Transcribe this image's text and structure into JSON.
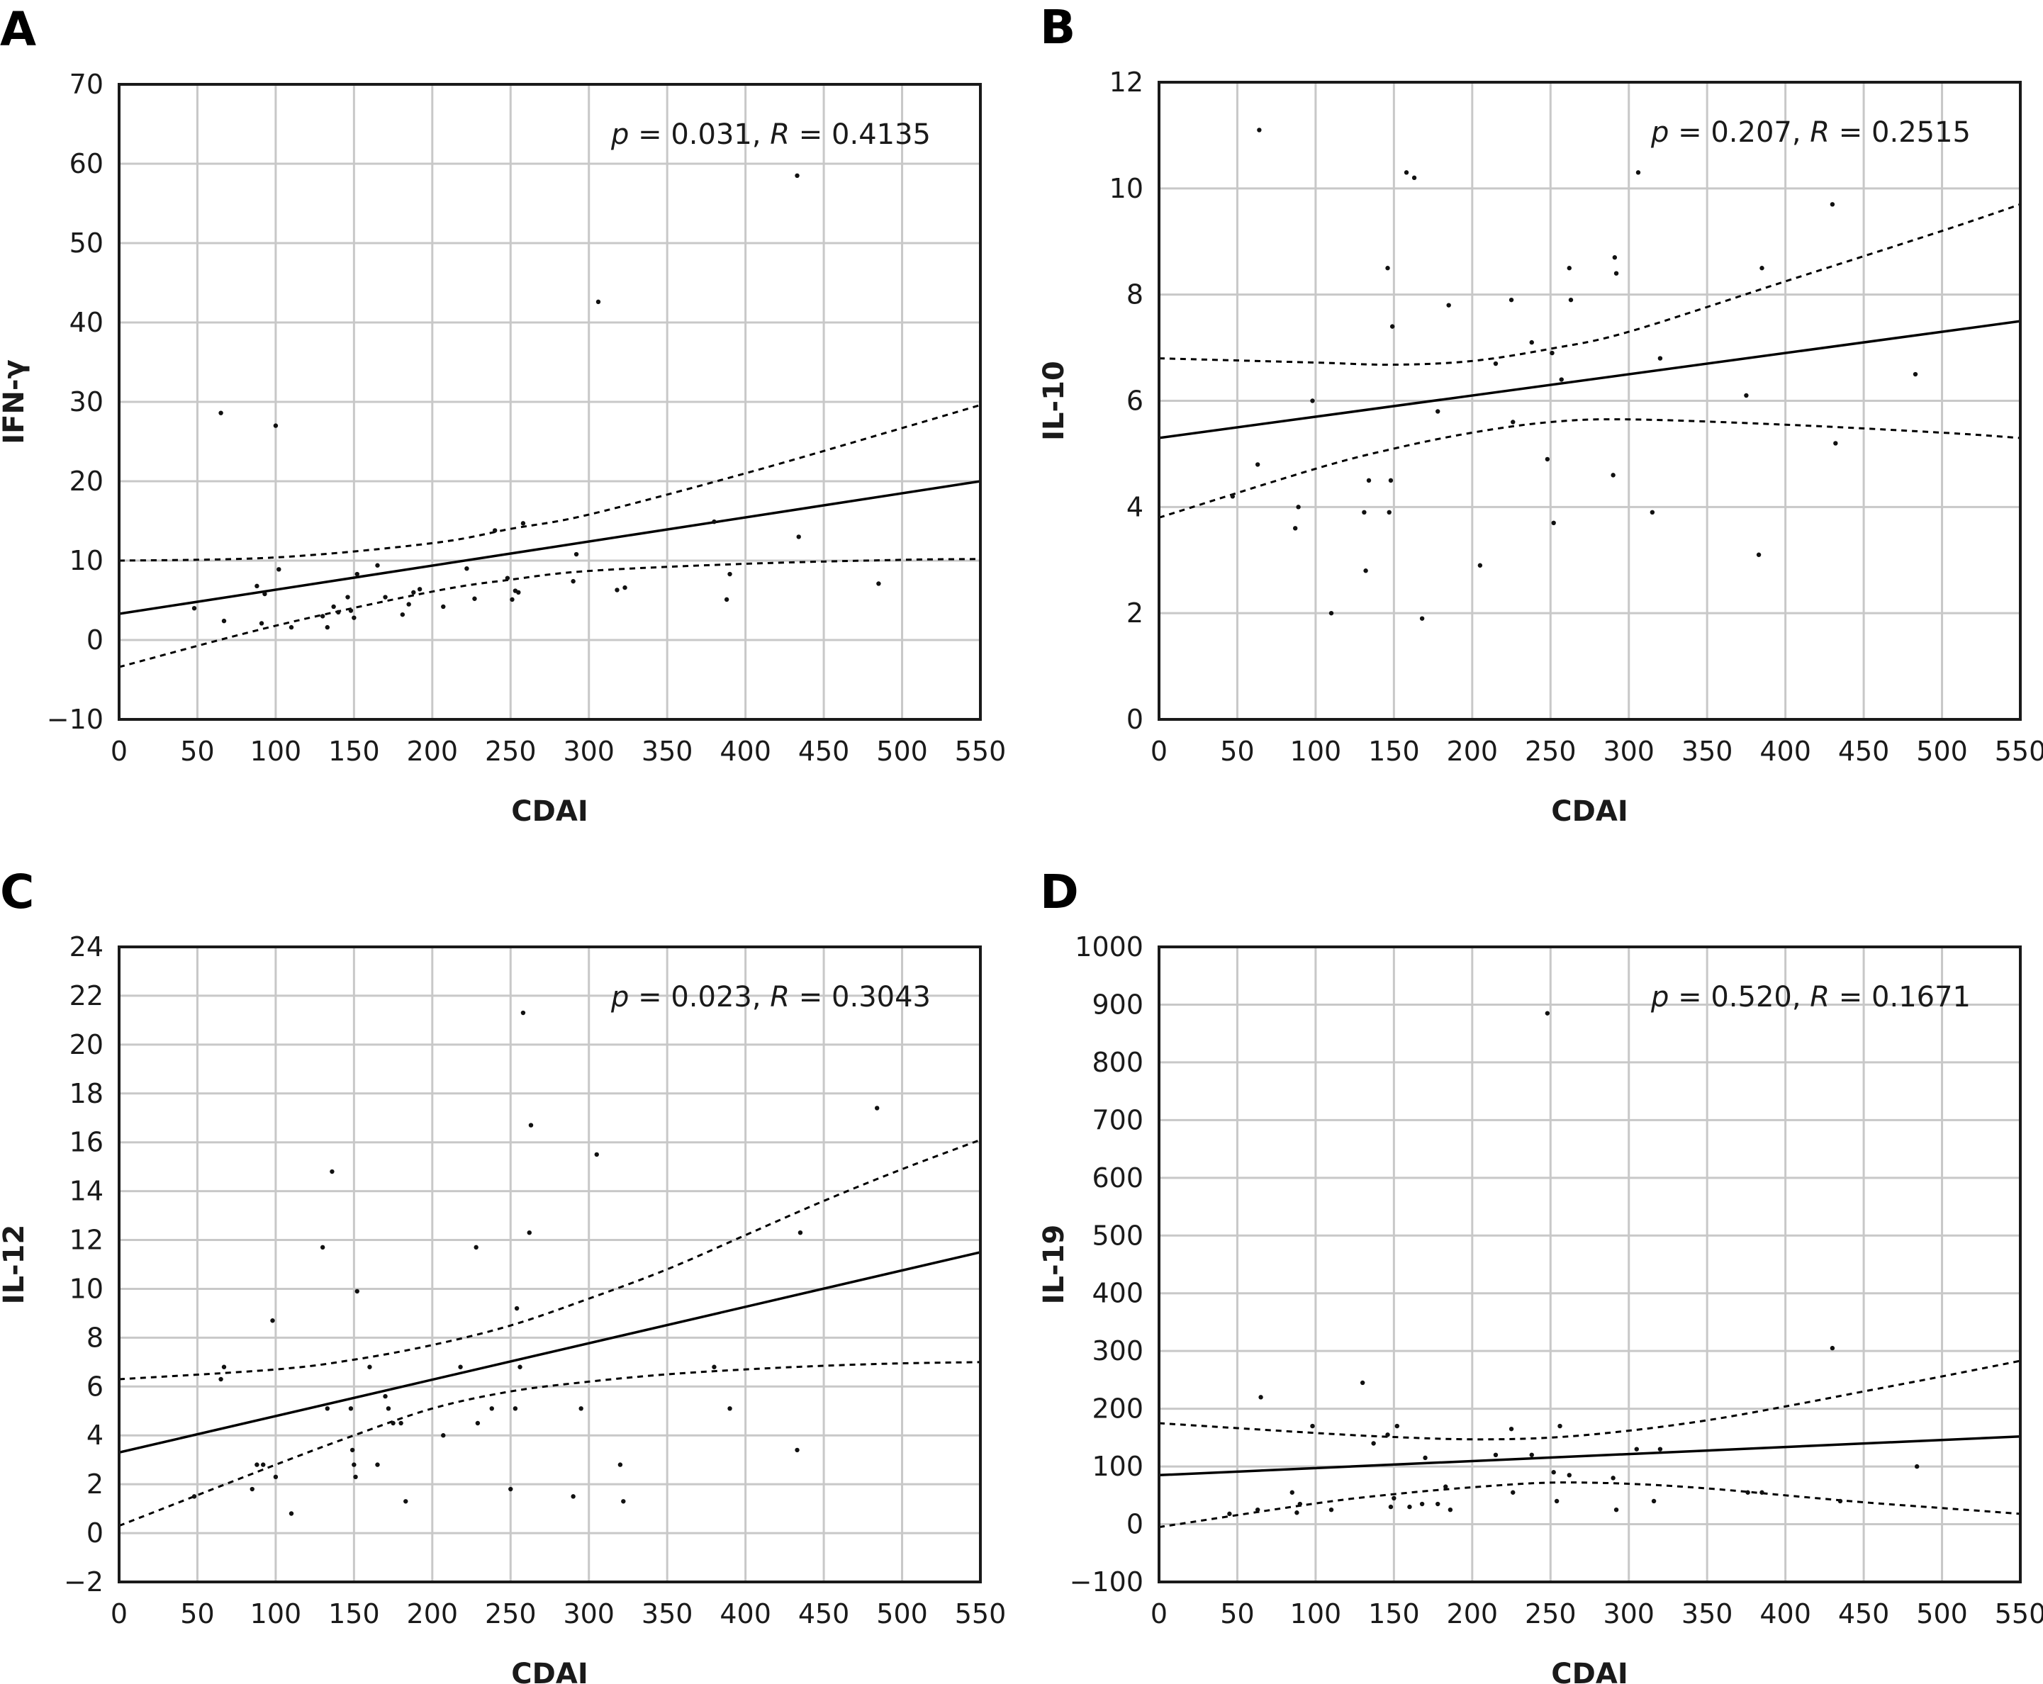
{
  "chart_data": [
    {
      "type": "scatter",
      "panel": "A",
      "xlabel": "CDAI",
      "ylabel": "IFN-γ",
      "xlim": [
        0,
        550
      ],
      "ylim": [
        -10,
        70
      ],
      "xticks": [
        0,
        50,
        100,
        150,
        200,
        250,
        300,
        350,
        400,
        450,
        500,
        550
      ],
      "yticks": [
        -10,
        0,
        10,
        20,
        30,
        40,
        50,
        60,
        70
      ],
      "grid": true,
      "annotation": {
        "p_label": "p",
        "p_value": " = 0.031, ",
        "r_label": "R",
        "r_value": " = 0.4135"
      },
      "fit": {
        "x": [
          0,
          550
        ],
        "y": [
          3.3,
          20.0
        ]
      },
      "ci_upper": {
        "x": [
          0,
          100,
          200,
          250,
          300,
          400,
          500,
          550
        ],
        "y": [
          10.0,
          10.4,
          12.2,
          14.0,
          15.8,
          21.0,
          26.7,
          29.6
        ]
      },
      "ci_lower": {
        "x": [
          0,
          100,
          200,
          250,
          300,
          400,
          500,
          550
        ],
        "y": [
          -3.4,
          1.8,
          6.1,
          7.6,
          8.7,
          9.6,
          10.1,
          10.2
        ]
      },
      "points": [
        [
          48,
          4
        ],
        [
          65,
          28.6
        ],
        [
          67,
          2.4
        ],
        [
          88,
          6.8
        ],
        [
          91,
          2.1
        ],
        [
          93,
          5.8
        ],
        [
          100,
          27
        ],
        [
          102,
          8.9
        ],
        [
          110,
          1.6
        ],
        [
          130,
          3
        ],
        [
          133,
          1.6
        ],
        [
          137,
          4.2
        ],
        [
          140,
          3.5
        ],
        [
          146,
          5.4
        ],
        [
          148,
          3.7
        ],
        [
          150,
          2.8
        ],
        [
          152,
          8.3
        ],
        [
          165,
          9.4
        ],
        [
          170,
          5.4
        ],
        [
          181,
          3.2
        ],
        [
          185,
          4.5
        ],
        [
          188,
          6
        ],
        [
          192,
          6.4
        ],
        [
          207,
          4.2
        ],
        [
          222,
          9
        ],
        [
          227,
          5.2
        ],
        [
          240,
          13.8
        ],
        [
          248,
          7.8
        ],
        [
          251,
          5.1
        ],
        [
          253,
          6.2
        ],
        [
          255,
          6
        ],
        [
          258,
          14.7
        ],
        [
          290,
          7.4
        ],
        [
          292,
          10.8
        ],
        [
          306,
          42.6
        ],
        [
          318,
          6.3
        ],
        [
          323,
          6.6
        ],
        [
          380,
          14.9
        ],
        [
          388,
          5.1
        ],
        [
          390,
          8.3
        ],
        [
          433,
          58.5
        ],
        [
          434,
          13
        ],
        [
          485,
          7.1
        ]
      ]
    },
    {
      "type": "scatter",
      "panel": "B",
      "xlabel": "CDAI",
      "ylabel": "IL-10",
      "xlim": [
        0,
        550
      ],
      "ylim": [
        0,
        12
      ],
      "xticks": [
        0,
        50,
        100,
        150,
        200,
        250,
        300,
        350,
        400,
        450,
        500,
        550
      ],
      "yticks": [
        0,
        2,
        4,
        6,
        8,
        10,
        12
      ],
      "grid": true,
      "annotation": {
        "p_label": "p",
        "p_value": " = 0.207, ",
        "r_label": "R",
        "r_value": " = 0.2515"
      },
      "fit": {
        "x": [
          0,
          550
        ],
        "y": [
          5.3,
          7.5
        ]
      },
      "ci_upper": {
        "x": [
          0,
          100,
          150,
          200,
          250,
          300,
          400,
          500,
          550
        ],
        "y": [
          6.8,
          6.72,
          6.68,
          6.75,
          6.98,
          7.3,
          8.25,
          9.2,
          9.7
        ]
      },
      "ci_lower": {
        "x": [
          0,
          100,
          150,
          200,
          250,
          300,
          400,
          500,
          550
        ],
        "y": [
          3.8,
          4.72,
          5.1,
          5.4,
          5.6,
          5.65,
          5.55,
          5.4,
          5.3
        ]
      },
      "points": [
        [
          47,
          4.2
        ],
        [
          63,
          4.8
        ],
        [
          64,
          11.1
        ],
        [
          87,
          3.6
        ],
        [
          89,
          4
        ],
        [
          98,
          6
        ],
        [
          110,
          2
        ],
        [
          131,
          3.9
        ],
        [
          132,
          2.8
        ],
        [
          134,
          4.5
        ],
        [
          146,
          8.5
        ],
        [
          147,
          3.9
        ],
        [
          148,
          4.5
        ],
        [
          149,
          7.4
        ],
        [
          158,
          10.3
        ],
        [
          163,
          10.2
        ],
        [
          168,
          1.9
        ],
        [
          178,
          5.8
        ],
        [
          185,
          7.8
        ],
        [
          205,
          2.9
        ],
        [
          215,
          6.7
        ],
        [
          225,
          7.9
        ],
        [
          226,
          5.6
        ],
        [
          238,
          7.1
        ],
        [
          248,
          4.9
        ],
        [
          251,
          6.9
        ],
        [
          252,
          3.7
        ],
        [
          257,
          6.4
        ],
        [
          262,
          8.5
        ],
        [
          263,
          7.9
        ],
        [
          290,
          4.6
        ],
        [
          291,
          8.7
        ],
        [
          292,
          8.4
        ],
        [
          306,
          10.3
        ],
        [
          315,
          3.9
        ],
        [
          320,
          6.8
        ],
        [
          375,
          6.1
        ],
        [
          383,
          3.1
        ],
        [
          385,
          8.5
        ],
        [
          430,
          9.7
        ],
        [
          432,
          5.2
        ],
        [
          483,
          6.5
        ]
      ]
    },
    {
      "type": "scatter",
      "panel": "C",
      "xlabel": "CDAI",
      "ylabel": "IL-12",
      "xlim": [
        0,
        550
      ],
      "ylim": [
        -2,
        24
      ],
      "xticks": [
        0,
        50,
        100,
        150,
        200,
        250,
        300,
        350,
        400,
        450,
        500,
        550
      ],
      "yticks": [
        -2,
        0,
        2,
        4,
        6,
        8,
        10,
        12,
        14,
        16,
        18,
        20,
        22,
        24
      ],
      "grid": true,
      "annotation": {
        "p_label": "p",
        "p_value": " = 0.023, ",
        "r_label": "R",
        "r_value": " = 0.3043"
      },
      "fit": {
        "x": [
          0,
          550
        ],
        "y": [
          3.3,
          11.5
        ]
      },
      "ci_upper": {
        "x": [
          0,
          100,
          150,
          200,
          250,
          300,
          350,
          400,
          450,
          500,
          550
        ],
        "y": [
          6.3,
          6.7,
          7.1,
          7.7,
          8.5,
          9.6,
          10.8,
          12.2,
          13.6,
          14.9,
          16.1
        ]
      },
      "ci_lower": {
        "x": [
          0,
          100,
          150,
          200,
          250,
          300,
          350,
          400,
          450,
          500,
          550
        ],
        "y": [
          0.3,
          2.8,
          4.0,
          5.1,
          5.8,
          6.2,
          6.5,
          6.7,
          6.85,
          6.95,
          7.0
        ]
      },
      "points": [
        [
          48,
          1.5
        ],
        [
          65,
          6.3
        ],
        [
          67,
          6.8
        ],
        [
          85,
          1.8
        ],
        [
          88,
          2.8
        ],
        [
          92,
          2.8
        ],
        [
          98,
          8.7
        ],
        [
          100,
          2.3
        ],
        [
          110,
          0.8
        ],
        [
          130,
          11.7
        ],
        [
          133,
          5.1
        ],
        [
          136,
          14.8
        ],
        [
          148,
          5.1
        ],
        [
          149,
          3.4
        ],
        [
          150,
          2.8
        ],
        [
          151,
          2.3
        ],
        [
          152,
          9.9
        ],
        [
          160,
          6.8
        ],
        [
          165,
          2.8
        ],
        [
          170,
          5.6
        ],
        [
          172,
          5.1
        ],
        [
          175,
          4.5
        ],
        [
          180,
          4.5
        ],
        [
          183,
          1.3
        ],
        [
          207,
          4
        ],
        [
          218,
          6.8
        ],
        [
          228,
          11.7
        ],
        [
          229,
          4.5
        ],
        [
          238,
          5.1
        ],
        [
          250,
          1.8
        ],
        [
          253,
          5.1
        ],
        [
          254,
          9.2
        ],
        [
          256,
          6.8
        ],
        [
          258,
          21.3
        ],
        [
          262,
          12.3
        ],
        [
          263,
          16.7
        ],
        [
          290,
          1.5
        ],
        [
          295,
          5.1
        ],
        [
          305,
          15.5
        ],
        [
          320,
          2.8
        ],
        [
          322,
          1.3
        ],
        [
          380,
          6.8
        ],
        [
          390,
          5.1
        ],
        [
          433,
          3.4
        ],
        [
          435,
          12.3
        ],
        [
          484,
          17.4
        ]
      ]
    },
    {
      "type": "scatter",
      "panel": "D",
      "xlabel": "CDAI",
      "ylabel": "IL-19",
      "xlim": [
        0,
        550
      ],
      "ylim": [
        -100,
        1000
      ],
      "xticks": [
        0,
        50,
        100,
        150,
        200,
        250,
        300,
        350,
        400,
        450,
        500,
        550
      ],
      "yticks": [
        -100,
        0,
        100,
        200,
        300,
        400,
        500,
        600,
        700,
        800,
        900,
        1000
      ],
      "grid": true,
      "annotation": {
        "p_label": "p",
        "p_value": " = 0.520, ",
        "r_label": "R",
        "r_value": " = 0.1671"
      },
      "fit": {
        "x": [
          0,
          550
        ],
        "y": [
          85,
          152
        ]
      },
      "ci_upper": {
        "x": [
          0,
          100,
          150,
          200,
          250,
          300,
          350,
          400,
          450,
          500,
          550
        ],
        "y": [
          175,
          158,
          151,
          147,
          150,
          162,
          180,
          204,
          230,
          256,
          283
        ]
      },
      "ci_lower": {
        "x": [
          0,
          100,
          150,
          200,
          250,
          300,
          350,
          400,
          450,
          500,
          550
        ],
        "y": [
          -5,
          36,
          52,
          64,
          72,
          70,
          62,
          50,
          38,
          28,
          18
        ]
      },
      "points": [
        [
          45,
          18
        ],
        [
          63,
          25
        ],
        [
          65,
          220
        ],
        [
          85,
          55
        ],
        [
          88,
          20
        ],
        [
          90,
          35
        ],
        [
          98,
          170
        ],
        [
          110,
          25
        ],
        [
          130,
          245
        ],
        [
          137,
          140
        ],
        [
          146,
          155
        ],
        [
          148,
          30
        ],
        [
          150,
          45
        ],
        [
          152,
          170
        ],
        [
          160,
          30
        ],
        [
          168,
          35
        ],
        [
          170,
          115
        ],
        [
          178,
          35
        ],
        [
          183,
          65
        ],
        [
          186,
          25
        ],
        [
          215,
          120
        ],
        [
          225,
          165
        ],
        [
          226,
          55
        ],
        [
          238,
          120
        ],
        [
          248,
          885
        ],
        [
          252,
          90
        ],
        [
          254,
          40
        ],
        [
          256,
          170
        ],
        [
          262,
          85
        ],
        [
          290,
          80
        ],
        [
          292,
          25
        ],
        [
          305,
          130
        ],
        [
          316,
          40
        ],
        [
          320,
          130
        ],
        [
          376,
          55
        ],
        [
          385,
          55
        ],
        [
          430,
          305
        ],
        [
          435,
          40
        ],
        [
          484,
          100
        ]
      ]
    }
  ]
}
